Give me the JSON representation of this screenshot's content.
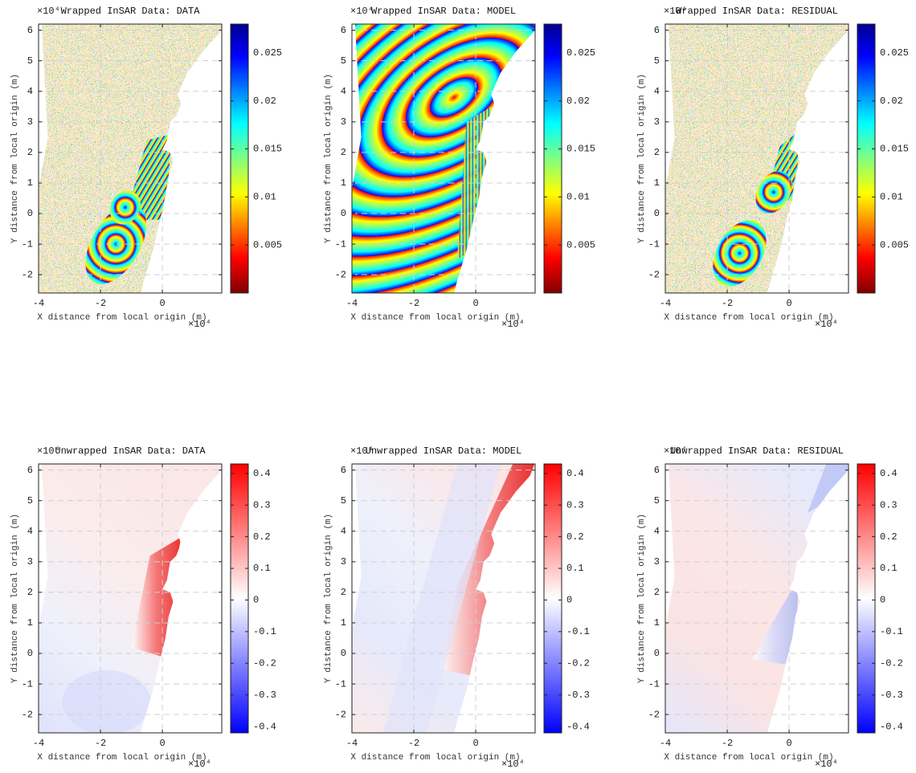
{
  "chart_data": [
    {
      "type": "heatmap",
      "title": "Wrapped InSAR Data: DATA",
      "xlabel": "X distance from local origin (m)",
      "ylabel": "Y distance from local origin (m)",
      "x_exponent": "×10⁴",
      "y_exponent": "×10⁴",
      "xlim": [
        -4,
        1.92
      ],
      "ylim": [
        -2.6,
        6.2
      ],
      "xticks": [
        -4,
        -2,
        0
      ],
      "yticks": [
        -2,
        -1,
        0,
        1,
        2,
        3,
        4,
        5,
        6
      ],
      "grid": true,
      "colormap": "jet",
      "clim": [
        0,
        0.028
      ],
      "cticks": [
        0.005,
        0.01,
        0.015,
        0.02,
        0.025
      ]
    },
    {
      "type": "heatmap",
      "title": "Wrapped InSAR Data: MODEL",
      "xlabel": "X distance from local origin (m)",
      "ylabel": "Y distance from local origin (m)",
      "x_exponent": "×10⁴",
      "y_exponent": "×10⁴",
      "xlim": [
        -4,
        1.92
      ],
      "ylim": [
        -2.6,
        6.2
      ],
      "xticks": [
        -4,
        -2,
        0
      ],
      "yticks": [
        -2,
        -1,
        0,
        1,
        2,
        3,
        4,
        5,
        6
      ],
      "grid": true,
      "colormap": "jet",
      "clim": [
        0,
        0.028
      ],
      "cticks": [
        0.005,
        0.01,
        0.015,
        0.02,
        0.025
      ]
    },
    {
      "type": "heatmap",
      "title": "Wrapped InSAR Data: RESIDUAL",
      "xlabel": "X distance from local origin (m)",
      "ylabel": "Y distance from local origin (m)",
      "x_exponent": "×10⁴",
      "y_exponent": "×10⁴",
      "xlim": [
        -4,
        1.92
      ],
      "ylim": [
        -2.6,
        6.2
      ],
      "xticks": [
        -4,
        -2,
        0
      ],
      "yticks": [
        -2,
        -1,
        0,
        1,
        2,
        3,
        4,
        5,
        6
      ],
      "grid": true,
      "colormap": "jet",
      "clim": [
        0,
        0.028
      ],
      "cticks": [
        0.005,
        0.01,
        0.015,
        0.02,
        0.025
      ]
    },
    {
      "type": "heatmap",
      "title": "Unwrapped InSAR Data: DATA",
      "xlabel": "X distance from local origin (m)",
      "ylabel": "Y distance from local origin (m)",
      "x_exponent": "×10⁴",
      "y_exponent": "×10⁴",
      "xlim": [
        -4,
        1.92
      ],
      "ylim": [
        -2.6,
        6.2
      ],
      "xticks": [
        -4,
        -2,
        0
      ],
      "yticks": [
        -2,
        -1,
        0,
        1,
        2,
        3,
        4,
        5,
        6
      ],
      "grid": true,
      "colormap": "bwr",
      "clim": [
        -0.42,
        0.43
      ],
      "cticks": [
        -0.4,
        -0.3,
        -0.2,
        -0.1,
        0,
        0.1,
        0.2,
        0.3,
        0.4
      ]
    },
    {
      "type": "heatmap",
      "title": "Unwrapped InSAR Data: MODEL",
      "xlabel": "X distance from local origin (m)",
      "ylabel": "Y distance from local origin (m)",
      "x_exponent": "×10⁴",
      "y_exponent": "×10⁴",
      "xlim": [
        -4,
        1.92
      ],
      "ylim": [
        -2.6,
        6.2
      ],
      "xticks": [
        -4,
        -2,
        0
      ],
      "yticks": [
        -2,
        -1,
        0,
        1,
        2,
        3,
        4,
        5,
        6
      ],
      "grid": true,
      "colormap": "bwr",
      "clim": [
        -0.42,
        0.43
      ],
      "cticks": [
        -0.4,
        -0.3,
        -0.2,
        -0.1,
        0,
        0.1,
        0.2,
        0.3,
        0.4
      ]
    },
    {
      "type": "heatmap",
      "title": "Unwrapped InSAR Data: RESIDUAL",
      "xlabel": "X distance from local origin (m)",
      "ylabel": "Y distance from local origin (m)",
      "x_exponent": "×10⁴",
      "y_exponent": "×10⁴",
      "xlim": [
        -4,
        1.92
      ],
      "ylim": [
        -2.6,
        6.2
      ],
      "xticks": [
        -4,
        -2,
        0
      ],
      "yticks": [
        -2,
        -1,
        0,
        1,
        2,
        3,
        4,
        5,
        6
      ],
      "grid": true,
      "colormap": "bwr",
      "clim": [
        -0.42,
        0.43
      ],
      "cticks": [
        -0.4,
        -0.3,
        -0.2,
        -0.1,
        0,
        0.1,
        0.2,
        0.3,
        0.4
      ]
    }
  ]
}
